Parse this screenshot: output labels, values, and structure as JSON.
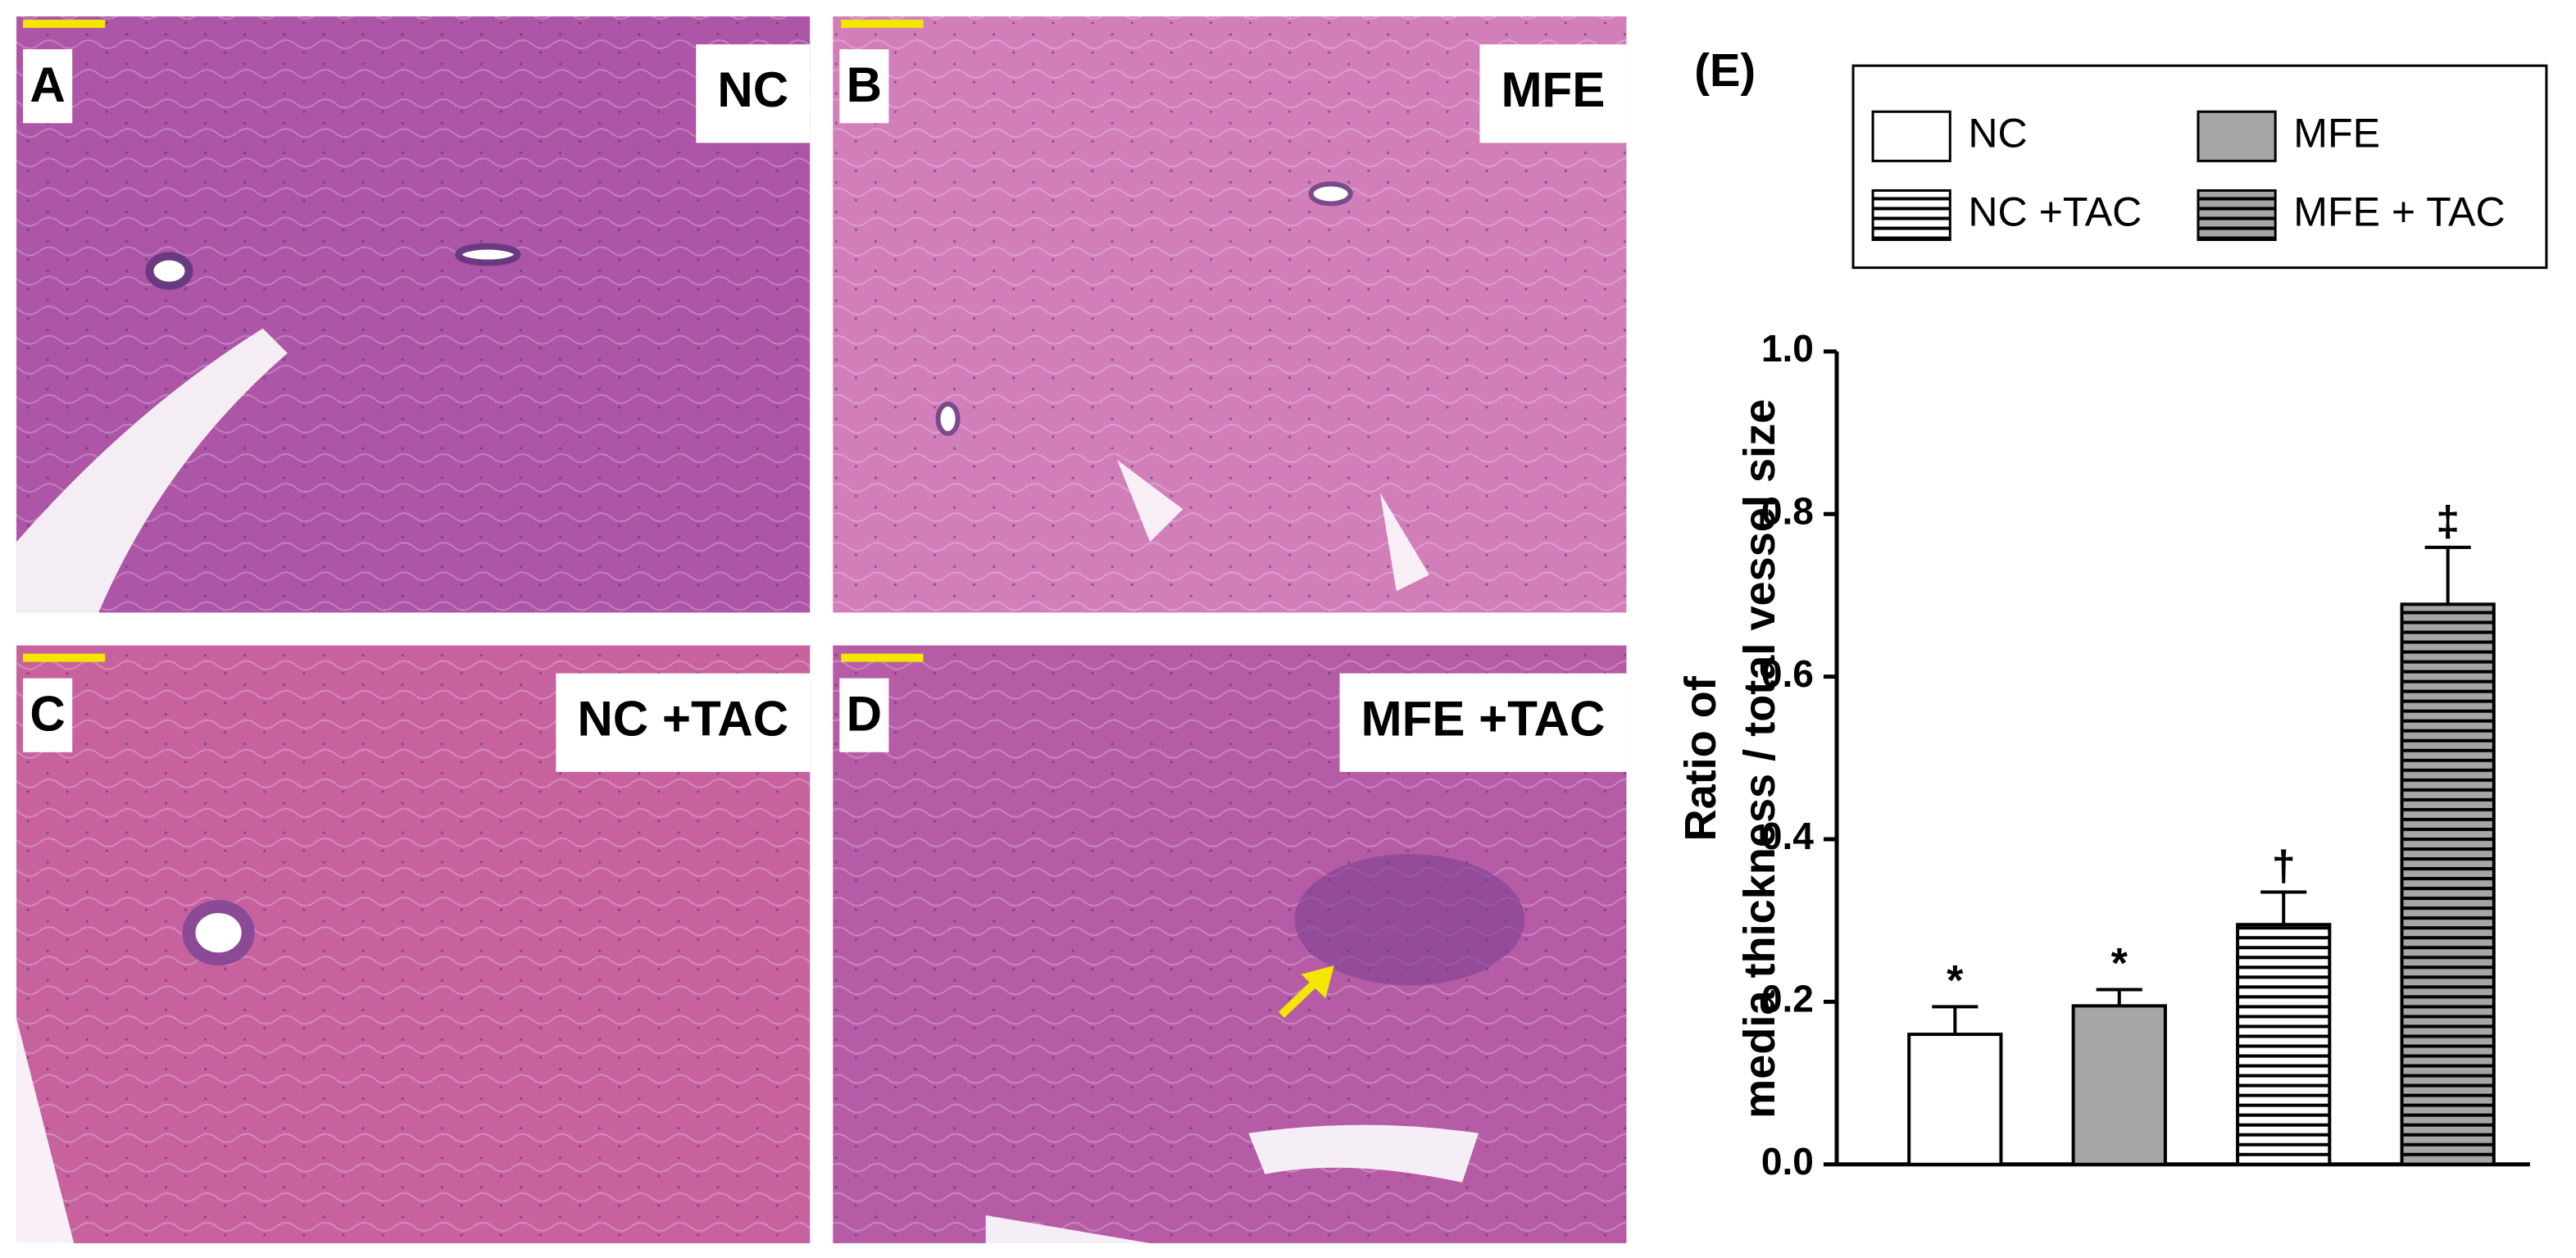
{
  "panels": [
    {
      "letter": "A",
      "label": "NC"
    },
    {
      "letter": "B",
      "label": "MFE"
    },
    {
      "letter": "C",
      "label": "NC +TAC"
    },
    {
      "letter": "D",
      "label": "MFE +TAC"
    }
  ],
  "chart_data": {
    "type": "bar",
    "title": "(E)",
    "y_label": [
      "Ratio of",
      "media thickness / total vessel size"
    ],
    "categories": [
      null
    ],
    "series": [
      {
        "name": "NC",
        "color": "#ffffff",
        "pattern": "solid",
        "values": [
          0.16
        ],
        "errors": [
          0.034
        ],
        "annotation": "*"
      },
      {
        "name": "MFE",
        "color": "#a6a6a6",
        "pattern": "solid",
        "values": [
          0.195
        ],
        "errors": [
          0.02
        ],
        "annotation": "*"
      },
      {
        "name": "NC +TAC",
        "color": "#ffffff",
        "pattern": "hlines",
        "values": [
          0.295
        ],
        "errors": [
          0.04
        ],
        "annotation": "†"
      },
      {
        "name": "MFE + TAC",
        "color": "#a6a6a6",
        "pattern": "hlines",
        "values": [
          0.689
        ],
        "errors": [
          0.07
        ],
        "annotation": "‡"
      }
    ],
    "ylim": [
      0,
      1
    ],
    "yticks": [
      {
        "value": 0,
        "label": "0.0"
      },
      0.2,
      0.4,
      0.6,
      0.8,
      {
        "value": 1,
        "label": "1.0"
      }
    ],
    "grid": false,
    "legend": "top"
  }
}
